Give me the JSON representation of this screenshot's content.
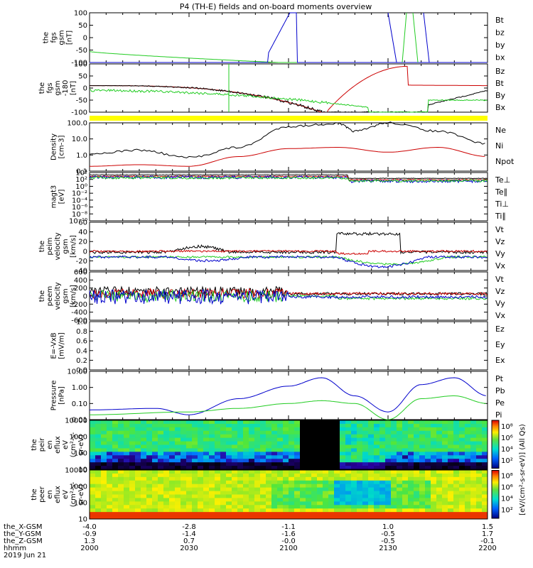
{
  "title": "P4 (TH-E) fields and on-board moments overview",
  "colors": {
    "black": "#000000",
    "red": "#cc0000",
    "green": "#22cc22",
    "blue": "#0000cc",
    "yellow": "#ffff00"
  },
  "panels": [
    {
      "id": "fgs-gsm",
      "ylabel": [
        "the",
        "fgs",
        "gsm",
        "[nT]"
      ],
      "ticks": [
        "100",
        "50",
        "0",
        "-50",
        "-100"
      ],
      "legend": [
        {
          "label": "Bt",
          "color": "black"
        },
        {
          "label": "bz",
          "color": "red"
        },
        {
          "label": "by",
          "color": "green"
        },
        {
          "label": "bx",
          "color": "blue"
        }
      ]
    },
    {
      "id": "fgs-gsm-2",
      "ylabel": [
        "the",
        "fgs",
        "gsm",
        "-180",
        "[nT]"
      ],
      "ticks": [
        "100",
        "50",
        "0",
        "-50",
        "-100"
      ],
      "legend": [
        {
          "label": "Bz",
          "color": "red"
        },
        {
          "label": "Bt",
          "color": "black"
        },
        {
          "label": "By",
          "color": "green"
        },
        {
          "label": "Bx",
          "color": "blue"
        }
      ]
    },
    {
      "id": "density",
      "ylabel": [
        "Density",
        "[cm-3]"
      ],
      "ticks": [
        "100.0",
        "10.0",
        "1.0",
        "0.1"
      ],
      "legend": [
        {
          "label": "Ne",
          "color": "red"
        },
        {
          "label": "Ni",
          "color": "black"
        },
        {
          "label": "Npot",
          "color": "blue"
        }
      ]
    },
    {
      "id": "temperature",
      "ylabel": [
        "magt3",
        "[eV]"
      ],
      "ticks": [
        "10⁴",
        "10²",
        "10⁰",
        "10⁻²",
        "10⁻⁴",
        "10⁻⁶",
        "10⁻⁸",
        "10⁻¹⁰"
      ],
      "legend": [
        {
          "label": "Te⊥",
          "color": "red"
        },
        {
          "label": "Te∥",
          "color": "black"
        },
        {
          "label": "Ti⊥",
          "color": "green"
        },
        {
          "label": "Ti∥",
          "color": "green"
        }
      ]
    },
    {
      "id": "peim-velocity",
      "ylabel": [
        "the",
        "peim",
        "velocity",
        "gsm",
        "[km/s]"
      ],
      "ticks": [
        "60",
        "40",
        "20",
        "0",
        "-20",
        "-40"
      ],
      "legend": [
        {
          "label": "Vt",
          "color": "black"
        },
        {
          "label": "Vz",
          "color": "red"
        },
        {
          "label": "Vy",
          "color": "green"
        },
        {
          "label": "Vx",
          "color": "blue"
        }
      ]
    },
    {
      "id": "peem-velocity",
      "ylabel": [
        "the",
        "peem",
        "velocity",
        "gsm",
        "[km/s]"
      ],
      "ticks": [
        "600",
        "400",
        "200",
        "0",
        "-200",
        "-400",
        "-600"
      ],
      "legend": [
        {
          "label": "Vt",
          "color": "black"
        },
        {
          "label": "Vz",
          "color": "red"
        },
        {
          "label": "Vy",
          "color": "green"
        },
        {
          "label": "Vx",
          "color": "blue"
        }
      ]
    },
    {
      "id": "efield",
      "ylabel": [
        "E=-VxB",
        "[mV/m]"
      ],
      "ticks": [
        "1.0",
        "0.8",
        "0.6",
        "0.4",
        "0.2",
        "0.0"
      ],
      "legend": [
        {
          "label": "Ez",
          "color": "red"
        },
        {
          "label": "Ey",
          "color": "green"
        },
        {
          "label": "Ex",
          "color": "blue"
        }
      ]
    },
    {
      "id": "pressure",
      "ylabel": [
        "Pressure",
        "[nPa]"
      ],
      "ticks": [
        "10.00",
        "1.00",
        "0.10",
        "0.01"
      ],
      "legend": [
        {
          "label": "Pt",
          "color": "black"
        },
        {
          "label": "Pb",
          "color": "red"
        },
        {
          "label": "Pe",
          "color": "green"
        },
        {
          "label": "Pi",
          "color": "blue"
        }
      ]
    },
    {
      "id": "peir-eflux",
      "ylabel": [
        "the",
        "peir",
        "en",
        "eflux",
        "eV",
        "(cm²-s-",
        "sr-eV)"
      ],
      "ticks": [
        "10000",
        "1000",
        "100",
        "10"
      ],
      "legend": []
    },
    {
      "id": "peer-eflux",
      "ylabel": [
        "the",
        "peer",
        "en",
        "eflux",
        "eV",
        "(cm²-s-",
        "sr-eV)"
      ],
      "ticks": [
        "10000",
        "1000",
        "100",
        "10"
      ],
      "legend": []
    }
  ],
  "colorbar": {
    "label": "[eV/(cm²-s-sr-eV)] (All Qs)",
    "ticks": [
      "10⁸",
      "10⁶",
      "10⁴",
      "10²",
      "10⁸",
      "10⁶",
      "10⁴",
      "10²"
    ]
  },
  "xaxis": {
    "rows": [
      {
        "label": "the_X-GSM",
        "values": [
          "-4.0",
          "-2.8",
          "-1.1",
          "1.0",
          "1.5"
        ]
      },
      {
        "label": "the_Y-GSM",
        "values": [
          "-0.9",
          "-1.4",
          "-1.6",
          "-0.5",
          "1.7"
        ]
      },
      {
        "label": "the_Z-GSM",
        "values": [
          "1.3",
          "0.7",
          "-0.0",
          "-0.5",
          "-0.1"
        ]
      },
      {
        "label": "hhmm",
        "values": [
          "2000",
          "2030",
          "2100",
          "2130",
          "2200"
        ]
      }
    ],
    "date": "2019 Jun 21"
  },
  "chart_data": {
    "type": "line",
    "title": "P4 (TH-E) fields and on-board moments overview",
    "x": [
      "2000",
      "2030",
      "2100",
      "2130",
      "2200"
    ],
    "xlabel": "hhmm",
    "series": [
      {
        "name": "Ni",
        "panel": "density",
        "x": [
          2000,
          2015,
          2030,
          2045,
          2100,
          2115,
          2120,
          2130,
          2145,
          2200
        ],
        "values": [
          1.2,
          2.0,
          0.7,
          3.0,
          60.0,
          90.0,
          30.0,
          100.0,
          30.0,
          5.0
        ]
      },
      {
        "name": "Ne",
        "panel": "density",
        "x": [
          2000,
          2015,
          2030,
          2045,
          2100,
          2115,
          2130,
          2145,
          2200
        ],
        "values": [
          0.2,
          0.25,
          0.2,
          0.8,
          2.5,
          3.0,
          1.5,
          3.0,
          0.8
        ]
      },
      {
        "name": "Pi",
        "panel": "pressure",
        "x": [
          2000,
          2020,
          2030,
          2045,
          2100,
          2110,
          2120,
          2130,
          2140,
          2150,
          2200
        ],
        "values": [
          0.04,
          0.05,
          0.02,
          0.2,
          1.2,
          4.0,
          0.3,
          0.03,
          1.5,
          4.0,
          0.3
        ]
      },
      {
        "name": "Pe",
        "panel": "pressure",
        "x": [
          2000,
          2030,
          2045,
          2100,
          2110,
          2120,
          2130,
          2140,
          2150,
          2200
        ],
        "values": [
          0.02,
          0.03,
          0.05,
          0.1,
          0.15,
          0.1,
          0.01,
          0.2,
          0.3,
          0.1
        ]
      }
    ]
  }
}
